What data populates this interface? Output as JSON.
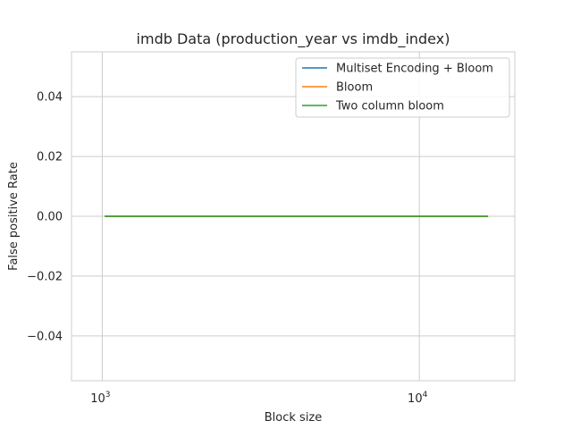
{
  "chart_data": {
    "type": "line",
    "title": "imdb Data (production_year vs imdb_index)",
    "xlabel": "Block size",
    "ylabel": "False positive Rate",
    "xscale": "log",
    "xlim": [
      800,
      20000
    ],
    "ylim": [
      -0.055,
      0.055
    ],
    "x_ticks": [
      {
        "value": 1000,
        "base": "10",
        "exp": "3"
      },
      {
        "value": 10000,
        "base": "10",
        "exp": "4"
      }
    ],
    "y_ticks": [
      {
        "value": 0.04,
        "label": "0.04"
      },
      {
        "value": 0.02,
        "label": "0.02"
      },
      {
        "value": 0.0,
        "label": "0.00"
      },
      {
        "value": -0.02,
        "label": "−0.02"
      },
      {
        "value": -0.04,
        "label": "−0.04"
      }
    ],
    "grid": true,
    "legend_position": "top-right",
    "series": [
      {
        "name": "Multiset Encoding + Bloom",
        "color": "#1f77b4",
        "x": [
          1024,
          2048,
          4096,
          8192,
          16384
        ],
        "y": [
          0,
          0,
          0,
          0,
          0
        ]
      },
      {
        "name": "Bloom",
        "color": "#ff7f0e",
        "x": [
          1024,
          2048,
          4096,
          8192,
          16384
        ],
        "y": [
          0,
          0,
          0,
          0,
          0
        ]
      },
      {
        "name": "Two column bloom",
        "color": "#2ca02c",
        "x": [
          1024,
          2048,
          4096,
          8192,
          16384
        ],
        "y": [
          0,
          0,
          0,
          0,
          0
        ]
      }
    ]
  }
}
